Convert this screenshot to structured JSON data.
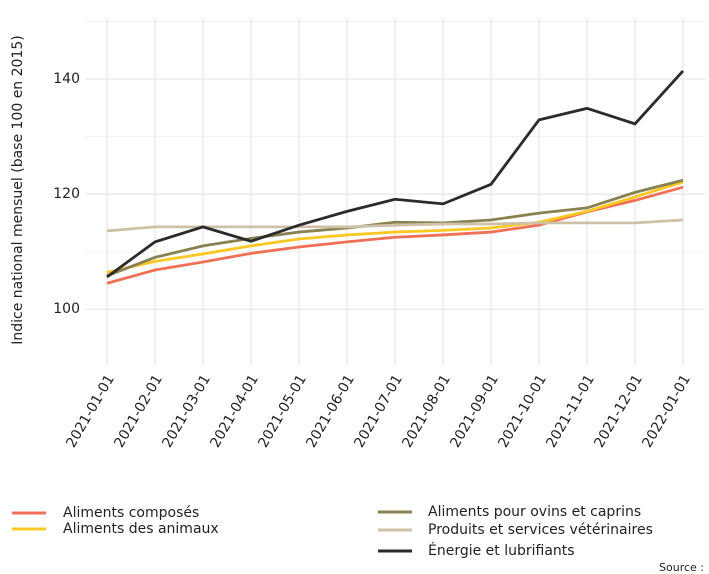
{
  "chart_data": {
    "type": "line",
    "y_label": "Indice national mensuel (base 100 en 2015)",
    "source": "Source :",
    "categories": [
      "2021-01-01",
      "2021-02-01",
      "2021-03-01",
      "2021-04-01",
      "2021-05-01",
      "2021-06-01",
      "2021-07-01",
      "2021-08-01",
      "2021-09-01",
      "2021-10-01",
      "2021-11-01",
      "2021-12-01",
      "2022-01-01"
    ],
    "series": [
      {
        "name": "Aliments composés",
        "color": "#f07057",
        "values": [
          104.5,
          106.8,
          108.2,
          109.7,
          110.8,
          111.7,
          112.5,
          112.9,
          113.4,
          114.6,
          116.9,
          118.9,
          121.2
        ]
      },
      {
        "name": "Aliments des animaux",
        "color": "#f9c823",
        "values": [
          106.4,
          108.3,
          109.6,
          111.0,
          112.2,
          112.9,
          113.4,
          113.7,
          114.1,
          115.1,
          117.0,
          119.5,
          122.1
        ]
      },
      {
        "name": "Aliments pour ovins et caprins",
        "color": "#8a8150",
        "values": [
          105.8,
          109.0,
          111.0,
          112.3,
          113.4,
          114.1,
          115.1,
          115.0,
          115.5,
          116.7,
          117.6,
          120.3,
          122.4
        ]
      },
      {
        "name": "Produits et services vétérinaires",
        "color": "#cfc0a8",
        "values": [
          113.6,
          114.3,
          114.3,
          114.3,
          114.3,
          114.3,
          114.6,
          114.8,
          114.8,
          115.0,
          115.0,
          115.0,
          115.5
        ]
      },
      {
        "name": "Énergie et lubrifiants",
        "color": "#2b2b2b",
        "values": [
          105.6,
          111.7,
          114.3,
          111.8,
          114.6,
          117.0,
          119.1,
          118.3,
          121.7,
          132.9,
          134.9,
          132.2,
          141.4
        ]
      }
    ],
    "ylim": [
      90.3,
      150.6
    ],
    "yticks": [
      100,
      120,
      140
    ],
    "yminor": [
      110,
      130,
      150
    ],
    "grid": true
  }
}
